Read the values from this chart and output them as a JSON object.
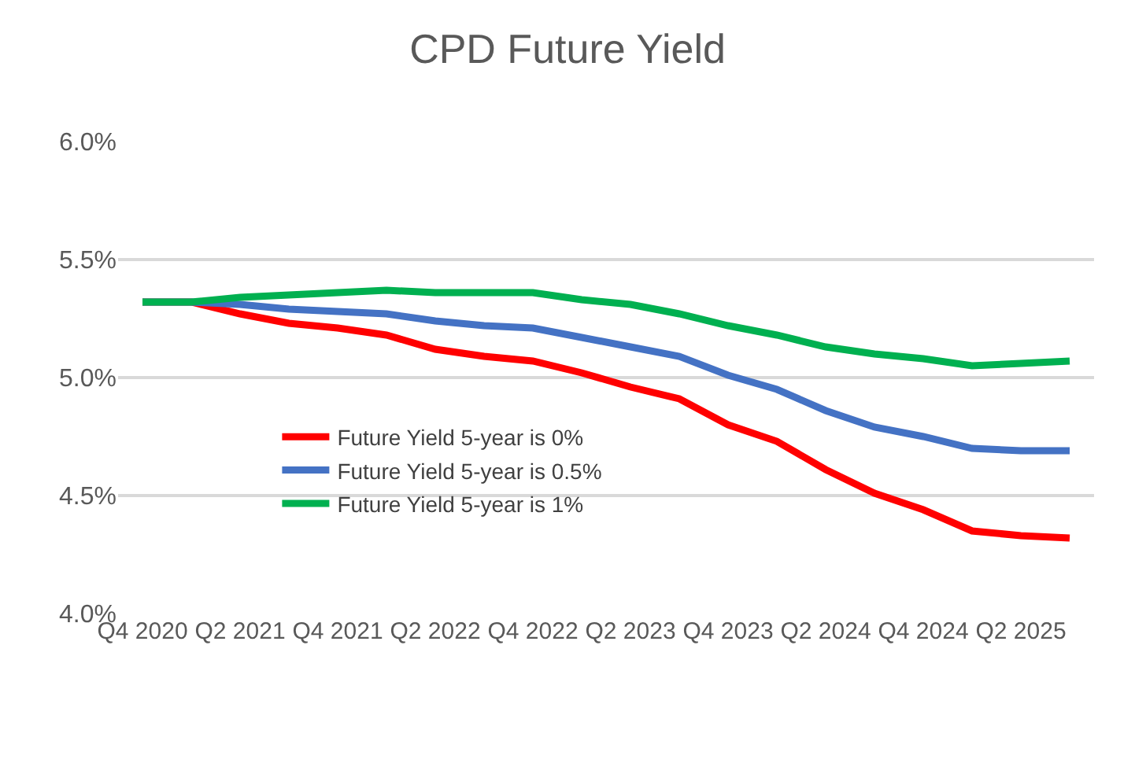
{
  "chart_data": {
    "type": "line",
    "title": "CPD Future Yield",
    "categories": [
      "Q4 2020",
      null,
      "Q2 2021",
      null,
      "Q4 2021",
      null,
      "Q2 2022",
      null,
      "Q4 2022",
      null,
      "Q2 2023",
      null,
      "Q4 2023",
      null,
      "Q2 2024",
      null,
      "Q4 2024",
      null,
      "Q2 2025",
      null
    ],
    "series": [
      {
        "name": "Future Yield 5-year is 0%",
        "color": "#ff0000",
        "values": [
          5.32,
          5.32,
          5.27,
          5.23,
          5.21,
          5.18,
          5.12,
          5.09,
          5.07,
          5.02,
          4.96,
          4.91,
          4.8,
          4.73,
          4.61,
          4.51,
          4.44,
          4.35,
          4.33,
          4.32
        ]
      },
      {
        "name": "Future Yield 5-year is 0.5%",
        "color": "#4472c4",
        "values": [
          5.32,
          5.32,
          5.31,
          5.29,
          5.28,
          5.27,
          5.24,
          5.22,
          5.21,
          5.17,
          5.13,
          5.09,
          5.01,
          4.95,
          4.86,
          4.79,
          4.75,
          4.7,
          4.69,
          4.69
        ]
      },
      {
        "name": "Future Yield 5-year is 1%",
        "color": "#00b050",
        "values": [
          5.32,
          5.32,
          5.34,
          5.35,
          5.36,
          5.37,
          5.36,
          5.36,
          5.36,
          5.33,
          5.31,
          5.27,
          5.22,
          5.18,
          5.13,
          5.1,
          5.08,
          5.05,
          5.06,
          5.07
        ]
      }
    ],
    "ylim": [
      4.0,
      6.0
    ],
    "yticks": [
      {
        "value": 4.0,
        "label": "4.0%"
      },
      {
        "value": 4.5,
        "label": "4.5%"
      },
      {
        "value": 5.0,
        "label": "5.0%"
      },
      {
        "value": 5.5,
        "label": "5.5%"
      },
      {
        "value": 6.0,
        "label": "6.0%"
      }
    ],
    "grid": "y",
    "legend": "bottom left",
    "marker": "none",
    "line_style": "solid"
  }
}
